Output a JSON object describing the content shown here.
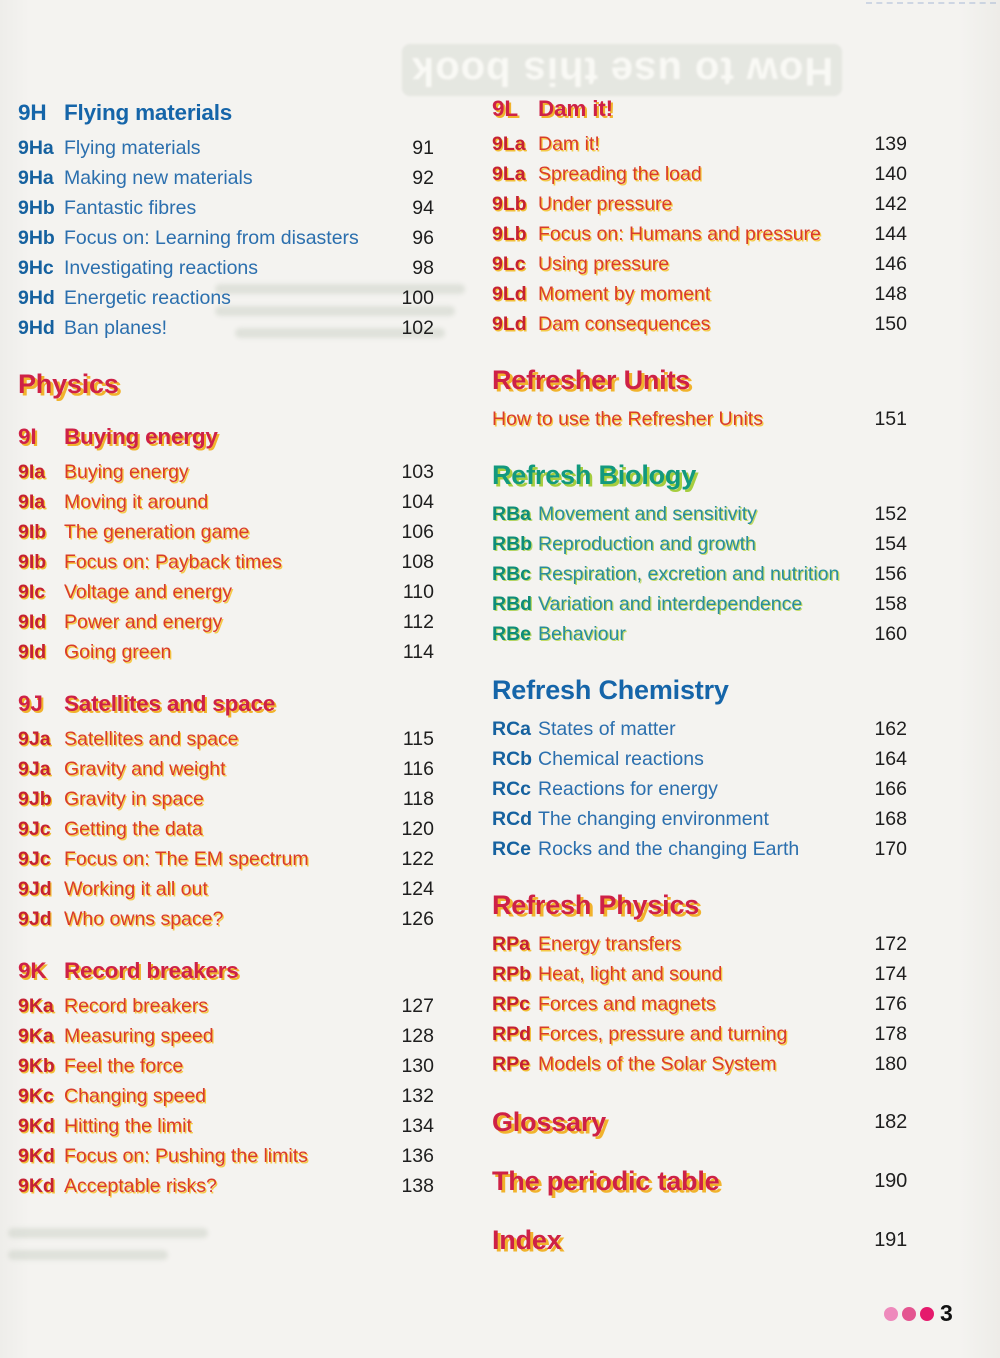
{
  "page": {
    "ghost_title": "How to use this book",
    "page_number": "3",
    "dot_colors": [
      "#ee8abc",
      "#e45590",
      "#e51a6c"
    ]
  },
  "columns": {
    "left": {
      "sections": [
        {
          "kind": "unit",
          "color": "blue",
          "label": "9H",
          "title": "Flying materials",
          "items": [
            {
              "label": "9Ha",
              "text": "Flying materials",
              "page": "91"
            },
            {
              "label": "9Ha",
              "text": "Making new materials",
              "page": "92"
            },
            {
              "label": "9Hb",
              "text": "Fantastic fibres",
              "page": "94"
            },
            {
              "label": "9Hb",
              "text": "Focus on: Learning from disasters",
              "page": "96"
            },
            {
              "label": "9Hc",
              "text": "Investigating reactions",
              "page": "98"
            },
            {
              "label": "9Hd",
              "text": "Energetic reactions",
              "page": "100"
            },
            {
              "label": "9Hd",
              "text": "Ban planes!",
              "page": "102"
            }
          ]
        },
        {
          "kind": "category",
          "color": "red",
          "label": "",
          "title": "Physics",
          "items": []
        },
        {
          "kind": "unit",
          "color": "red",
          "label": "9I",
          "title": "Buying energy",
          "items": [
            {
              "label": "9Ia",
              "text": "Buying energy",
              "page": "103"
            },
            {
              "label": "9Ia",
              "text": "Moving it around",
              "page": "104"
            },
            {
              "label": "9Ib",
              "text": "The generation game",
              "page": "106"
            },
            {
              "label": "9Ib",
              "text": "Focus on: Payback times",
              "page": "108"
            },
            {
              "label": "9Ic",
              "text": "Voltage and energy",
              "page": "110"
            },
            {
              "label": "9Id",
              "text": "Power and energy",
              "page": "112"
            },
            {
              "label": "9Id",
              "text": "Going green",
              "page": "114"
            }
          ]
        },
        {
          "kind": "unit",
          "color": "red",
          "label": "9J",
          "title": "Satellites and space",
          "items": [
            {
              "label": "9Ja",
              "text": "Satellites and space",
              "page": "115"
            },
            {
              "label": "9Ja",
              "text": "Gravity and weight",
              "page": "116"
            },
            {
              "label": "9Jb",
              "text": "Gravity in space",
              "page": "118"
            },
            {
              "label": "9Jc",
              "text": "Getting the data",
              "page": "120"
            },
            {
              "label": "9Jc",
              "text": "Focus on: The EM spectrum",
              "page": "122"
            },
            {
              "label": "9Jd",
              "text": "Working it all out",
              "page": "124"
            },
            {
              "label": "9Jd",
              "text": "Who owns space?",
              "page": "126"
            }
          ]
        },
        {
          "kind": "unit",
          "color": "red",
          "label": "9K",
          "title": "Record breakers",
          "items": [
            {
              "label": "9Ka",
              "text": "Record breakers",
              "page": "127"
            },
            {
              "label": "9Ka",
              "text": "Measuring speed",
              "page": "128"
            },
            {
              "label": "9Kb",
              "text": "Feel the force",
              "page": "130"
            },
            {
              "label": "9Kc",
              "text": "Changing speed",
              "page": "132"
            },
            {
              "label": "9Kd",
              "text": "Hitting the limit",
              "page": "134"
            },
            {
              "label": "9Kd",
              "text": "Focus on: Pushing the limits",
              "page": "136"
            },
            {
              "label": "9Kd",
              "text": "Acceptable risks?",
              "page": "138"
            }
          ]
        }
      ]
    },
    "right": {
      "sections": [
        {
          "kind": "unit",
          "color": "red",
          "label": "9L",
          "title": "Dam it!",
          "items": [
            {
              "label": "9La",
              "text": "Dam it!",
              "page": "139"
            },
            {
              "label": "9La",
              "text": "Spreading the load",
              "page": "140"
            },
            {
              "label": "9Lb",
              "text": "Under pressure",
              "page": "142"
            },
            {
              "label": "9Lb",
              "text": "Focus on: Humans and pressure",
              "page": "144"
            },
            {
              "label": "9Lc",
              "text": "Using pressure",
              "page": "146"
            },
            {
              "label": "9Ld",
              "text": "Moment by moment",
              "page": "148"
            },
            {
              "label": "9Ld",
              "text": "Dam consequences",
              "page": "150"
            }
          ]
        },
        {
          "kind": "category",
          "color": "red",
          "label": "",
          "title": "Refresher Units",
          "items": [
            {
              "label": "",
              "text": "How to use the Refresher Units",
              "page": "151"
            }
          ]
        },
        {
          "kind": "category",
          "color": "teal",
          "label": "",
          "title": "Refresh Biology",
          "items": [
            {
              "label": "RBa",
              "text": "Movement and sensitivity",
              "page": "152"
            },
            {
              "label": "RBb",
              "text": "Reproduction and growth",
              "page": "154"
            },
            {
              "label": "RBc",
              "text": "Respiration, excretion and nutrition",
              "page": "156"
            },
            {
              "label": "RBd",
              "text": "Variation and interdependence",
              "page": "158"
            },
            {
              "label": "RBe",
              "text": "Behaviour",
              "page": "160"
            }
          ]
        },
        {
          "kind": "category",
          "color": "blue",
          "label": "",
          "title": "Refresh Chemistry",
          "items": [
            {
              "label": "RCa",
              "text": "States of matter",
              "page": "162"
            },
            {
              "label": "RCb",
              "text": "Chemical reactions",
              "page": "164"
            },
            {
              "label": "RCc",
              "text": "Reactions for energy",
              "page": "166"
            },
            {
              "label": "RCd",
              "text": "The changing environment",
              "page": "168"
            },
            {
              "label": "RCe",
              "text": "Rocks and the changing Earth",
              "page": "170"
            }
          ]
        },
        {
          "kind": "category",
          "color": "red",
          "label": "",
          "title": "Refresh Physics",
          "items": [
            {
              "label": "RPa",
              "text": "Energy transfers",
              "page": "172"
            },
            {
              "label": "RPb",
              "text": "Heat, light and sound",
              "page": "174"
            },
            {
              "label": "RPc",
              "text": "Forces and magnets",
              "page": "176"
            },
            {
              "label": "RPd",
              "text": "Forces, pressure and turning",
              "page": "178"
            },
            {
              "label": "RPe",
              "text": "Models of the Solar System",
              "page": "180"
            }
          ]
        },
        {
          "kind": "entry",
          "color": "red",
          "label": "",
          "title": "Glossary",
          "page": "182",
          "items": []
        },
        {
          "kind": "entry",
          "color": "red",
          "label": "",
          "title": "The periodic table",
          "page": "190",
          "items": []
        },
        {
          "kind": "entry",
          "color": "red",
          "label": "",
          "title": "Index",
          "page": "191",
          "items": []
        }
      ]
    }
  }
}
